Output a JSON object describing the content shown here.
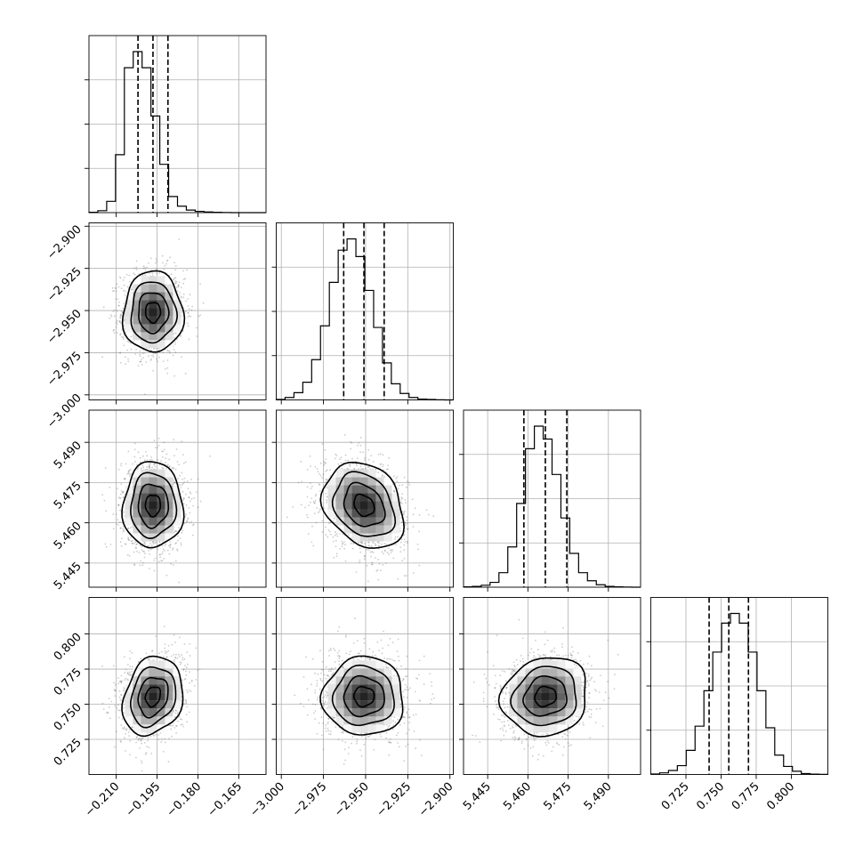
{
  "chart_data": {
    "type": "corner",
    "n_params": 4,
    "params": [
      {
        "index": 0,
        "median": -0.1965,
        "q_low": -0.202,
        "q_high": -0.191,
        "sigma": 0.0055,
        "range": [
          -0.22,
          -0.155
        ],
        "ticks": [
          -0.21,
          -0.195,
          -0.18,
          -0.165
        ],
        "tick_labels": [
          "−0.210",
          "−0.195",
          "−0.180",
          "−0.165"
        ]
      },
      {
        "index": 1,
        "median": -2.951,
        "q_low": -2.963,
        "q_high": -2.939,
        "sigma": 0.012,
        "range": [
          -3.003,
          -2.898
        ],
        "ticks": [
          -3.0,
          -2.975,
          -2.95,
          -2.925,
          -2.9
        ],
        "tick_labels": [
          "−3.000",
          "−2.975",
          "−2.950",
          "−2.925",
          "−2.900"
        ]
      },
      {
        "index": 2,
        "median": 5.4665,
        "q_low": 5.4585,
        "q_high": 5.4745,
        "sigma": 0.008,
        "range": [
          5.436,
          5.502
        ],
        "ticks": [
          5.445,
          5.46,
          5.475,
          5.49
        ],
        "tick_labels": [
          "5.445",
          "5.460",
          "5.475",
          "5.490"
        ]
      },
      {
        "index": 3,
        "median": 0.7555,
        "q_low": 0.7415,
        "q_high": 0.7695,
        "sigma": 0.014,
        "range": [
          0.7,
          0.826
        ],
        "ticks": [
          0.725,
          0.75,
          0.775,
          0.8
        ],
        "tick_labels": [
          "0.725",
          "0.750",
          "0.775",
          "0.800"
        ]
      }
    ],
    "correlations": [
      {
        "x": 0,
        "y": 1,
        "rho": 0.0
      },
      {
        "x": 0,
        "y": 2,
        "rho": 0.0
      },
      {
        "x": 1,
        "y": 2,
        "rho": -0.25
      },
      {
        "x": 0,
        "y": 3,
        "rho": 0.2
      },
      {
        "x": 1,
        "y": 3,
        "rho": 0.0
      },
      {
        "x": 2,
        "y": 3,
        "rho": 0.1
      }
    ],
    "histograms": [
      {
        "param": 0,
        "bins": 20,
        "counts": [
          2,
          12,
          70,
          360,
          900,
          1000,
          900,
          600,
          300,
          100,
          40,
          16,
          8,
          4,
          2,
          1,
          0,
          0,
          0,
          0
        ]
      },
      {
        "param": 1,
        "bins": 20,
        "counts": [
          3,
          15,
          45,
          110,
          250,
          460,
          730,
          930,
          1000,
          890,
          680,
          450,
          230,
          100,
          40,
          15,
          5,
          3,
          1,
          0
        ]
      },
      {
        "param": 2,
        "bins": 20,
        "counts": [
          2,
          5,
          12,
          30,
          90,
          250,
          520,
          860,
          1000,
          920,
          700,
          430,
          210,
          90,
          40,
          15,
          5,
          2,
          1,
          0
        ]
      },
      {
        "param": 3,
        "bins": 20,
        "counts": [
          3,
          10,
          25,
          55,
          150,
          300,
          520,
          760,
          940,
          1000,
          940,
          760,
          520,
          290,
          120,
          50,
          20,
          6,
          2,
          1
        ]
      }
    ],
    "contour_levels_sigma": [
      0.5,
      1.0,
      1.5,
      2.0
    ],
    "grid": true,
    "quantile_lines": "dashed"
  }
}
